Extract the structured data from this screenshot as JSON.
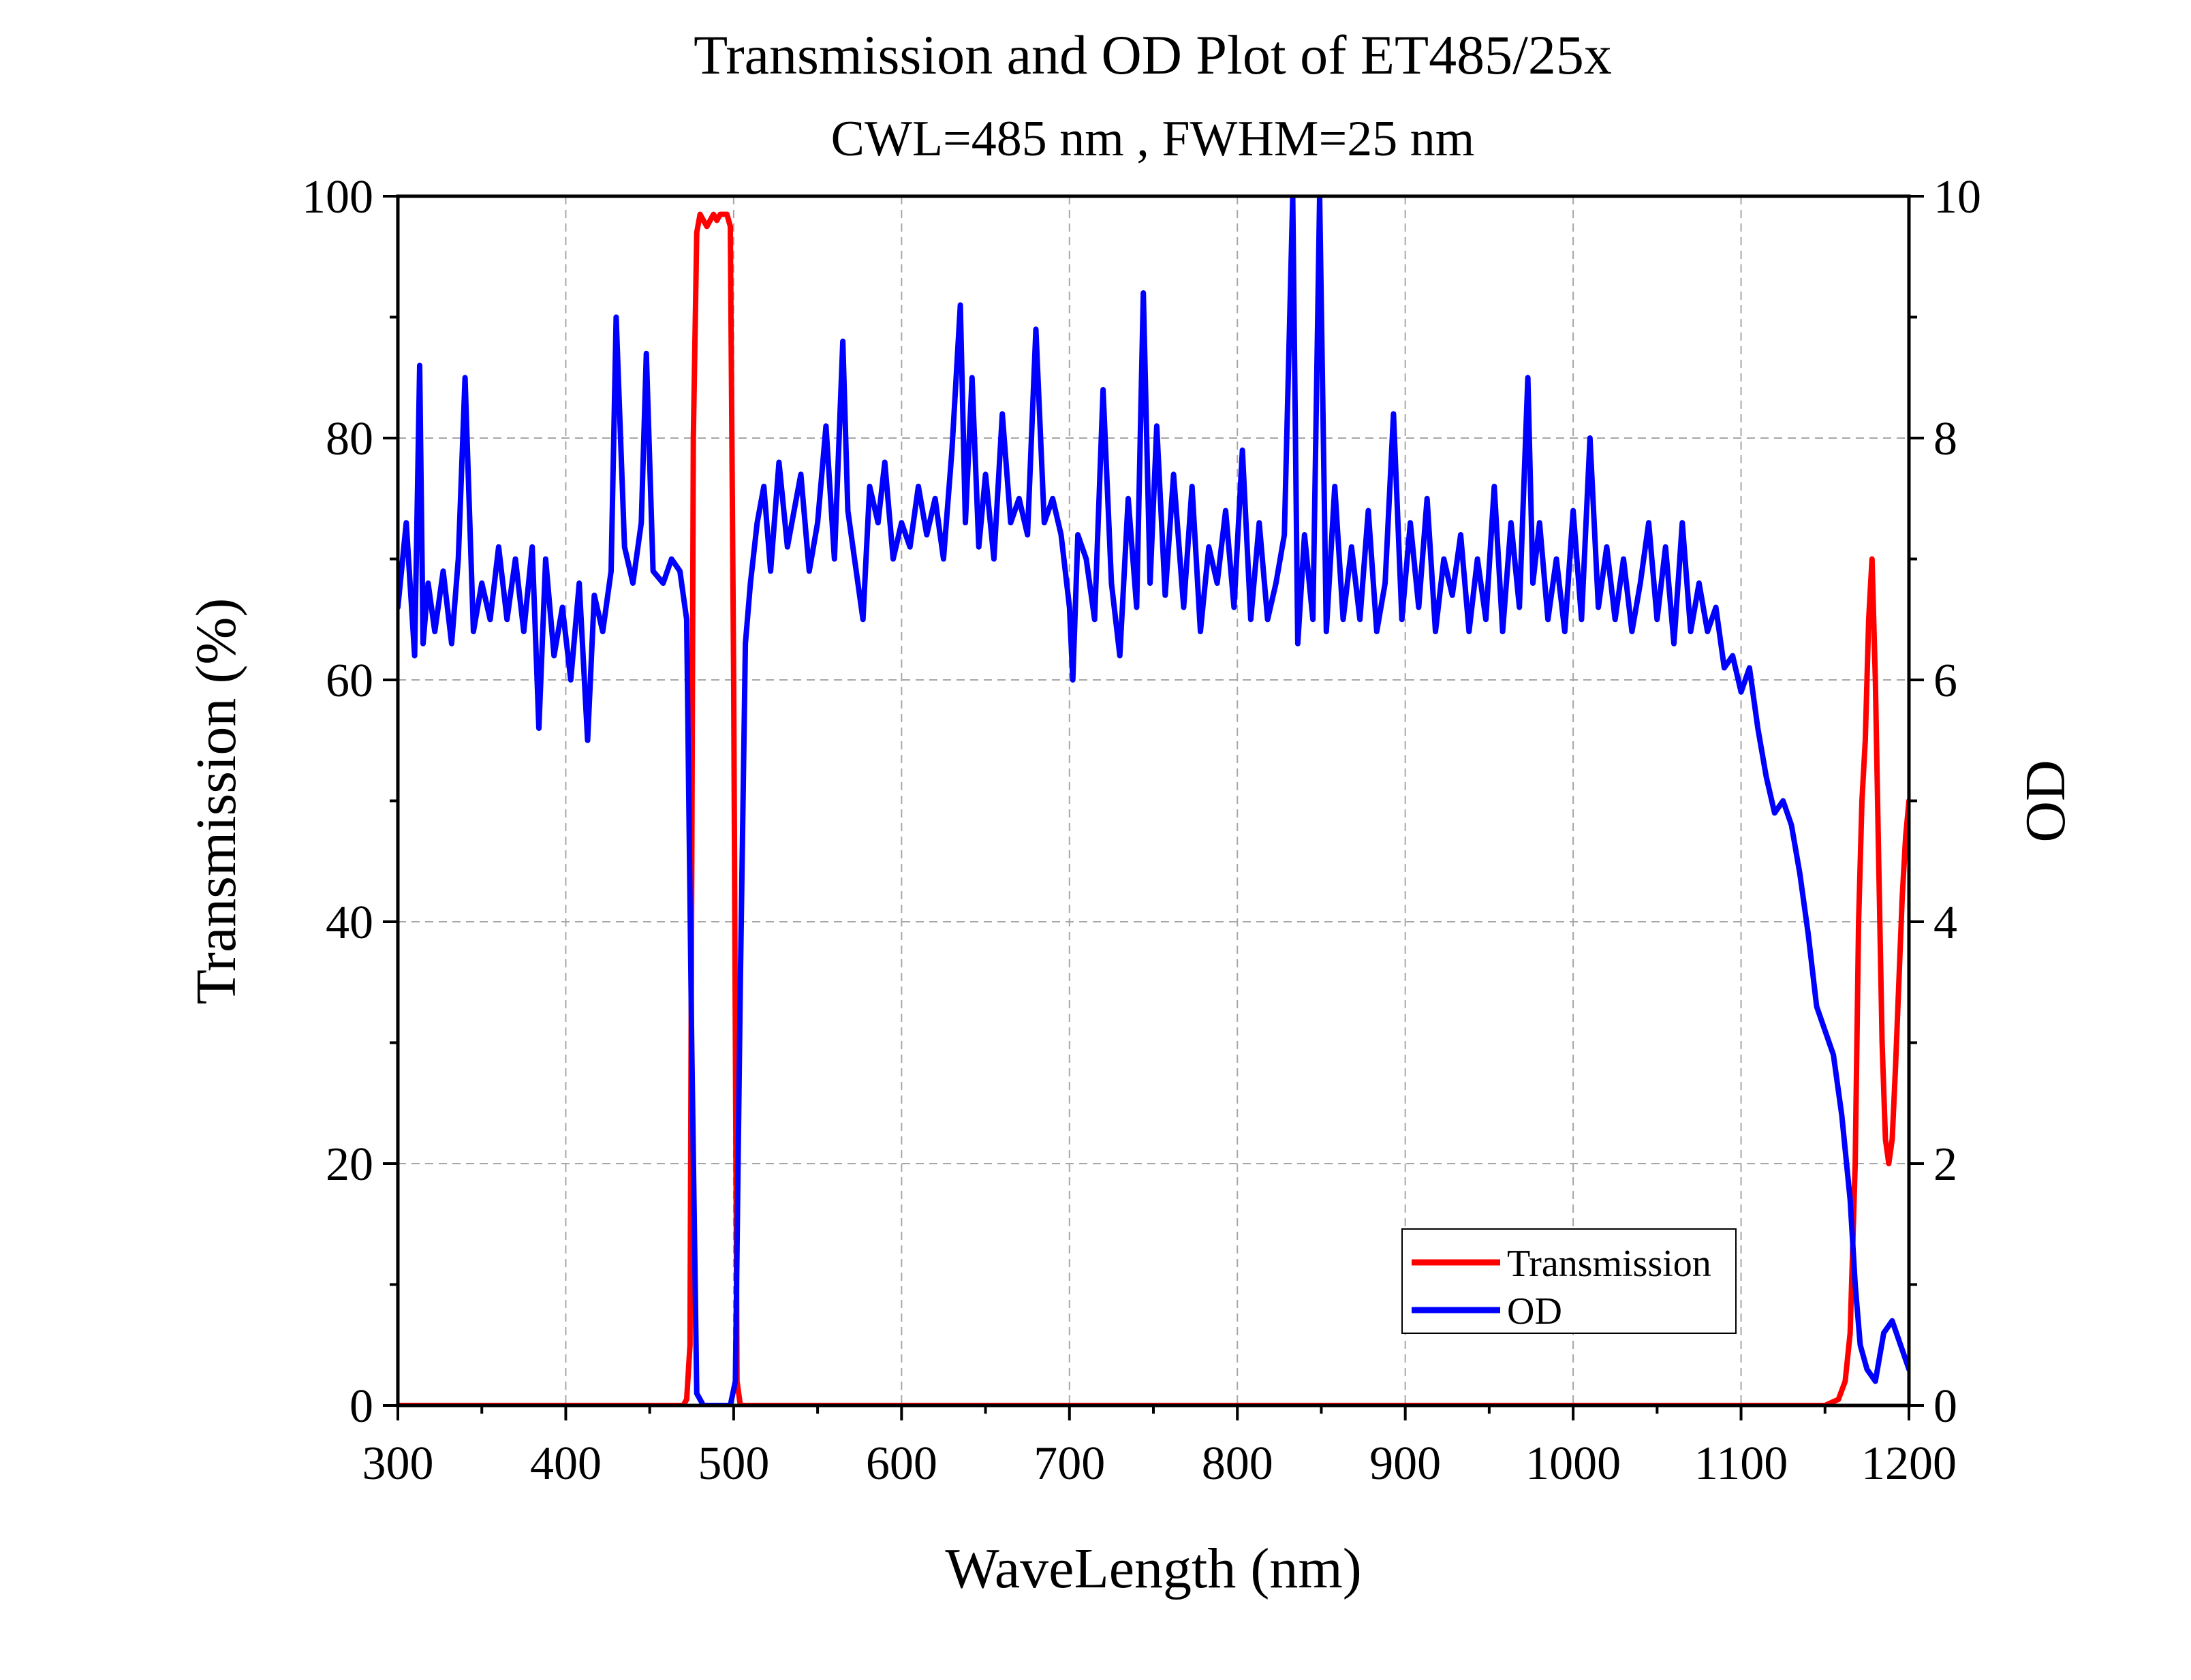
{
  "chart_data": {
    "type": "line",
    "title": "Transmission and OD Plot of ET485/25x",
    "subtitle": "CWL=485 nm , FWHM=25 nm",
    "xlabel": "WaveLength (nm)",
    "ylabel_left": "Transmission (%)",
    "ylabel_right": "OD",
    "xlim": [
      300,
      1200
    ],
    "ylim_left": [
      0,
      100
    ],
    "ylim_right": [
      0,
      10
    ],
    "x_ticks": [
      300,
      400,
      500,
      600,
      700,
      800,
      900,
      1000,
      1100,
      1200
    ],
    "x_tick_labels": [
      "300",
      "400",
      "500",
      "600",
      "700",
      "800",
      "900",
      "1000",
      "1100",
      "1200"
    ],
    "y_left_ticks": [
      0,
      20,
      40,
      60,
      80,
      100
    ],
    "y_left_tick_labels": [
      "0",
      "20",
      "40",
      "60",
      "80",
      "100"
    ],
    "y_right_ticks": [
      0,
      2,
      4,
      6,
      8,
      10
    ],
    "y_right_tick_labels": [
      "0",
      "2",
      "4",
      "6",
      "8",
      "10"
    ],
    "grid": true,
    "legend_position": "bottom-right",
    "series": [
      {
        "name": "Transmission",
        "axis": "left",
        "color": "#ff0000",
        "x": [
          300,
          470,
          472,
          474,
          476,
          478,
          480,
          482,
          484,
          486,
          488,
          490,
          492,
          494,
          496,
          498,
          500,
          502,
          504,
          600,
          800,
          1100,
          1150,
          1158,
          1162,
          1165,
          1168,
          1170,
          1172,
          1174,
          1176,
          1178,
          1180,
          1182,
          1184,
          1186,
          1188,
          1190,
          1192,
          1194,
          1196,
          1198,
          1200
        ],
        "values": [
          0,
          0,
          0.5,
          5,
          80,
          97,
          98.5,
          98,
          97.5,
          98,
          98.5,
          98,
          98.5,
          98.5,
          98.5,
          97.5,
          60,
          2,
          0,
          0,
          0,
          0,
          0,
          0.5,
          2,
          6,
          20,
          40,
          50,
          55,
          65,
          70,
          60,
          45,
          30,
          22,
          20,
          22,
          28,
          35,
          42,
          47,
          50
        ]
      },
      {
        "name": "OD",
        "axis": "right",
        "color": "#0000ff",
        "x": [
          300,
          305,
          310,
          313,
          315,
          318,
          322,
          327,
          332,
          336,
          340,
          345,
          350,
          355,
          360,
          365,
          370,
          375,
          380,
          384,
          388,
          393,
          398,
          403,
          408,
          413,
          417,
          422,
          427,
          430,
          435,
          440,
          445,
          448,
          452,
          458,
          463,
          468,
          472,
          475,
          478,
          482,
          490,
          498,
          501,
          504,
          507,
          510,
          514,
          518,
          522,
          527,
          532,
          536,
          540,
          545,
          550,
          555,
          560,
          565,
          568,
          572,
          577,
          581,
          586,
          590,
          595,
          600,
          605,
          610,
          615,
          620,
          625,
          630,
          635,
          638,
          642,
          646,
          650,
          655,
          660,
          665,
          670,
          675,
          680,
          685,
          690,
          695,
          700,
          702,
          705,
          710,
          715,
          720,
          725,
          730,
          735,
          740,
          744,
          748,
          752,
          757,
          762,
          768,
          773,
          778,
          783,
          788,
          793,
          798,
          803,
          808,
          813,
          818,
          823,
          828,
          833,
          836,
          840,
          845,
          849,
          853,
          858,
          863,
          868,
          873,
          878,
          883,
          888,
          893,
          898,
          903,
          908,
          913,
          918,
          923,
          928,
          933,
          938,
          943,
          948,
          953,
          958,
          963,
          968,
          973,
          976,
          980,
          985,
          990,
          995,
          1000,
          1005,
          1010,
          1015,
          1020,
          1025,
          1030,
          1035,
          1040,
          1045,
          1050,
          1055,
          1060,
          1065,
          1070,
          1075,
          1080,
          1085,
          1090,
          1095,
          1100,
          1105,
          1110,
          1115,
          1120,
          1125,
          1130,
          1135,
          1140,
          1145,
          1150,
          1155,
          1160,
          1165,
          1168,
          1171,
          1175,
          1180,
          1185,
          1190,
          1195,
          1200
        ],
        "values": [
          6.6,
          7.3,
          6.2,
          8.6,
          6.3,
          6.8,
          6.4,
          6.9,
          6.3,
          7.0,
          8.5,
          6.4,
          6.8,
          6.5,
          7.1,
          6.5,
          7.0,
          6.4,
          7.1,
          5.6,
          7.0,
          6.2,
          6.6,
          6.0,
          6.8,
          5.5,
          6.7,
          6.4,
          6.9,
          9.0,
          7.1,
          6.8,
          7.3,
          8.7,
          6.9,
          6.8,
          7.0,
          6.9,
          6.5,
          3.0,
          0.1,
          0,
          0,
          0,
          0.2,
          3.5,
          6.3,
          6.8,
          7.3,
          7.6,
          6.9,
          7.8,
          7.1,
          7.4,
          7.7,
          6.9,
          7.3,
          8.1,
          7.0,
          8.8,
          7.4,
          7.0,
          6.5,
          7.6,
          7.3,
          7.8,
          7.0,
          7.3,
          7.1,
          7.6,
          7.2,
          7.5,
          7.0,
          7.9,
          9.1,
          7.3,
          8.5,
          7.1,
          7.7,
          7.0,
          8.2,
          7.3,
          7.5,
          7.2,
          8.9,
          7.3,
          7.5,
          7.2,
          6.6,
          6.0,
          7.2,
          7.0,
          6.5,
          8.4,
          6.8,
          6.2,
          7.5,
          6.6,
          9.2,
          6.8,
          8.1,
          6.7,
          7.7,
          6.6,
          7.6,
          6.4,
          7.1,
          6.8,
          7.4,
          6.6,
          7.9,
          6.5,
          7.3,
          6.5,
          6.8,
          7.2,
          10.0,
          6.3,
          7.2,
          6.5,
          10.0,
          6.4,
          7.6,
          6.5,
          7.1,
          6.5,
          7.4,
          6.4,
          6.8,
          8.2,
          6.5,
          7.3,
          6.6,
          7.5,
          6.4,
          7.0,
          6.7,
          7.2,
          6.4,
          7.0,
          6.5,
          7.6,
          6.4,
          7.3,
          6.6,
          8.5,
          6.8,
          7.3,
          6.5,
          7.0,
          6.4,
          7.4,
          6.5,
          8.0,
          6.6,
          7.1,
          6.5,
          7.0,
          6.4,
          6.8,
          7.3,
          6.5,
          7.1,
          6.3,
          7.3,
          6.4,
          6.8,
          6.4,
          6.6,
          6.1,
          6.2,
          5.9,
          6.1,
          5.6,
          5.2,
          4.9,
          5.0,
          4.8,
          4.4,
          3.9,
          3.3,
          3.1,
          2.9,
          2.4,
          1.7,
          1.0,
          0.5,
          0.3,
          0.2,
          0.6,
          0.7,
          0.5,
          0.3
        ]
      }
    ]
  }
}
